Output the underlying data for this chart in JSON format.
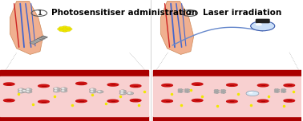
{
  "fig_width": 3.78,
  "fig_height": 1.52,
  "dpi": 100,
  "bg_color": "#ffffff",
  "title1": "Photosensitiser administration",
  "title2": "Laser irradiation",
  "title_fontsize": 7.5,
  "arm_skin": "#f0b090",
  "arm_edge": "#cc8855",
  "vein_blue": "#4466cc",
  "vein_red": "#cc2222",
  "ps_color": "#f0e800",
  "rbc_color": "#cc1111",
  "bacteria_color": "#b8b8b8",
  "bacteria_dead_color": "#aaaaaa",
  "vessel_border": "#aa0000",
  "vessel_interior": "#f8d0d0",
  "label_circle_color": "#555555",
  "laser_body_color": "#cce0f8",
  "laser_edge_color": "#3355aa",
  "laser_cap_color": "#222222",
  "laser_beam_color": "#6688cc",
  "syringe_color": "#aaaaaa",
  "syringe_edge": "#666666",
  "dot_color": "#f0e800",
  "divider_color": "#cccccc"
}
